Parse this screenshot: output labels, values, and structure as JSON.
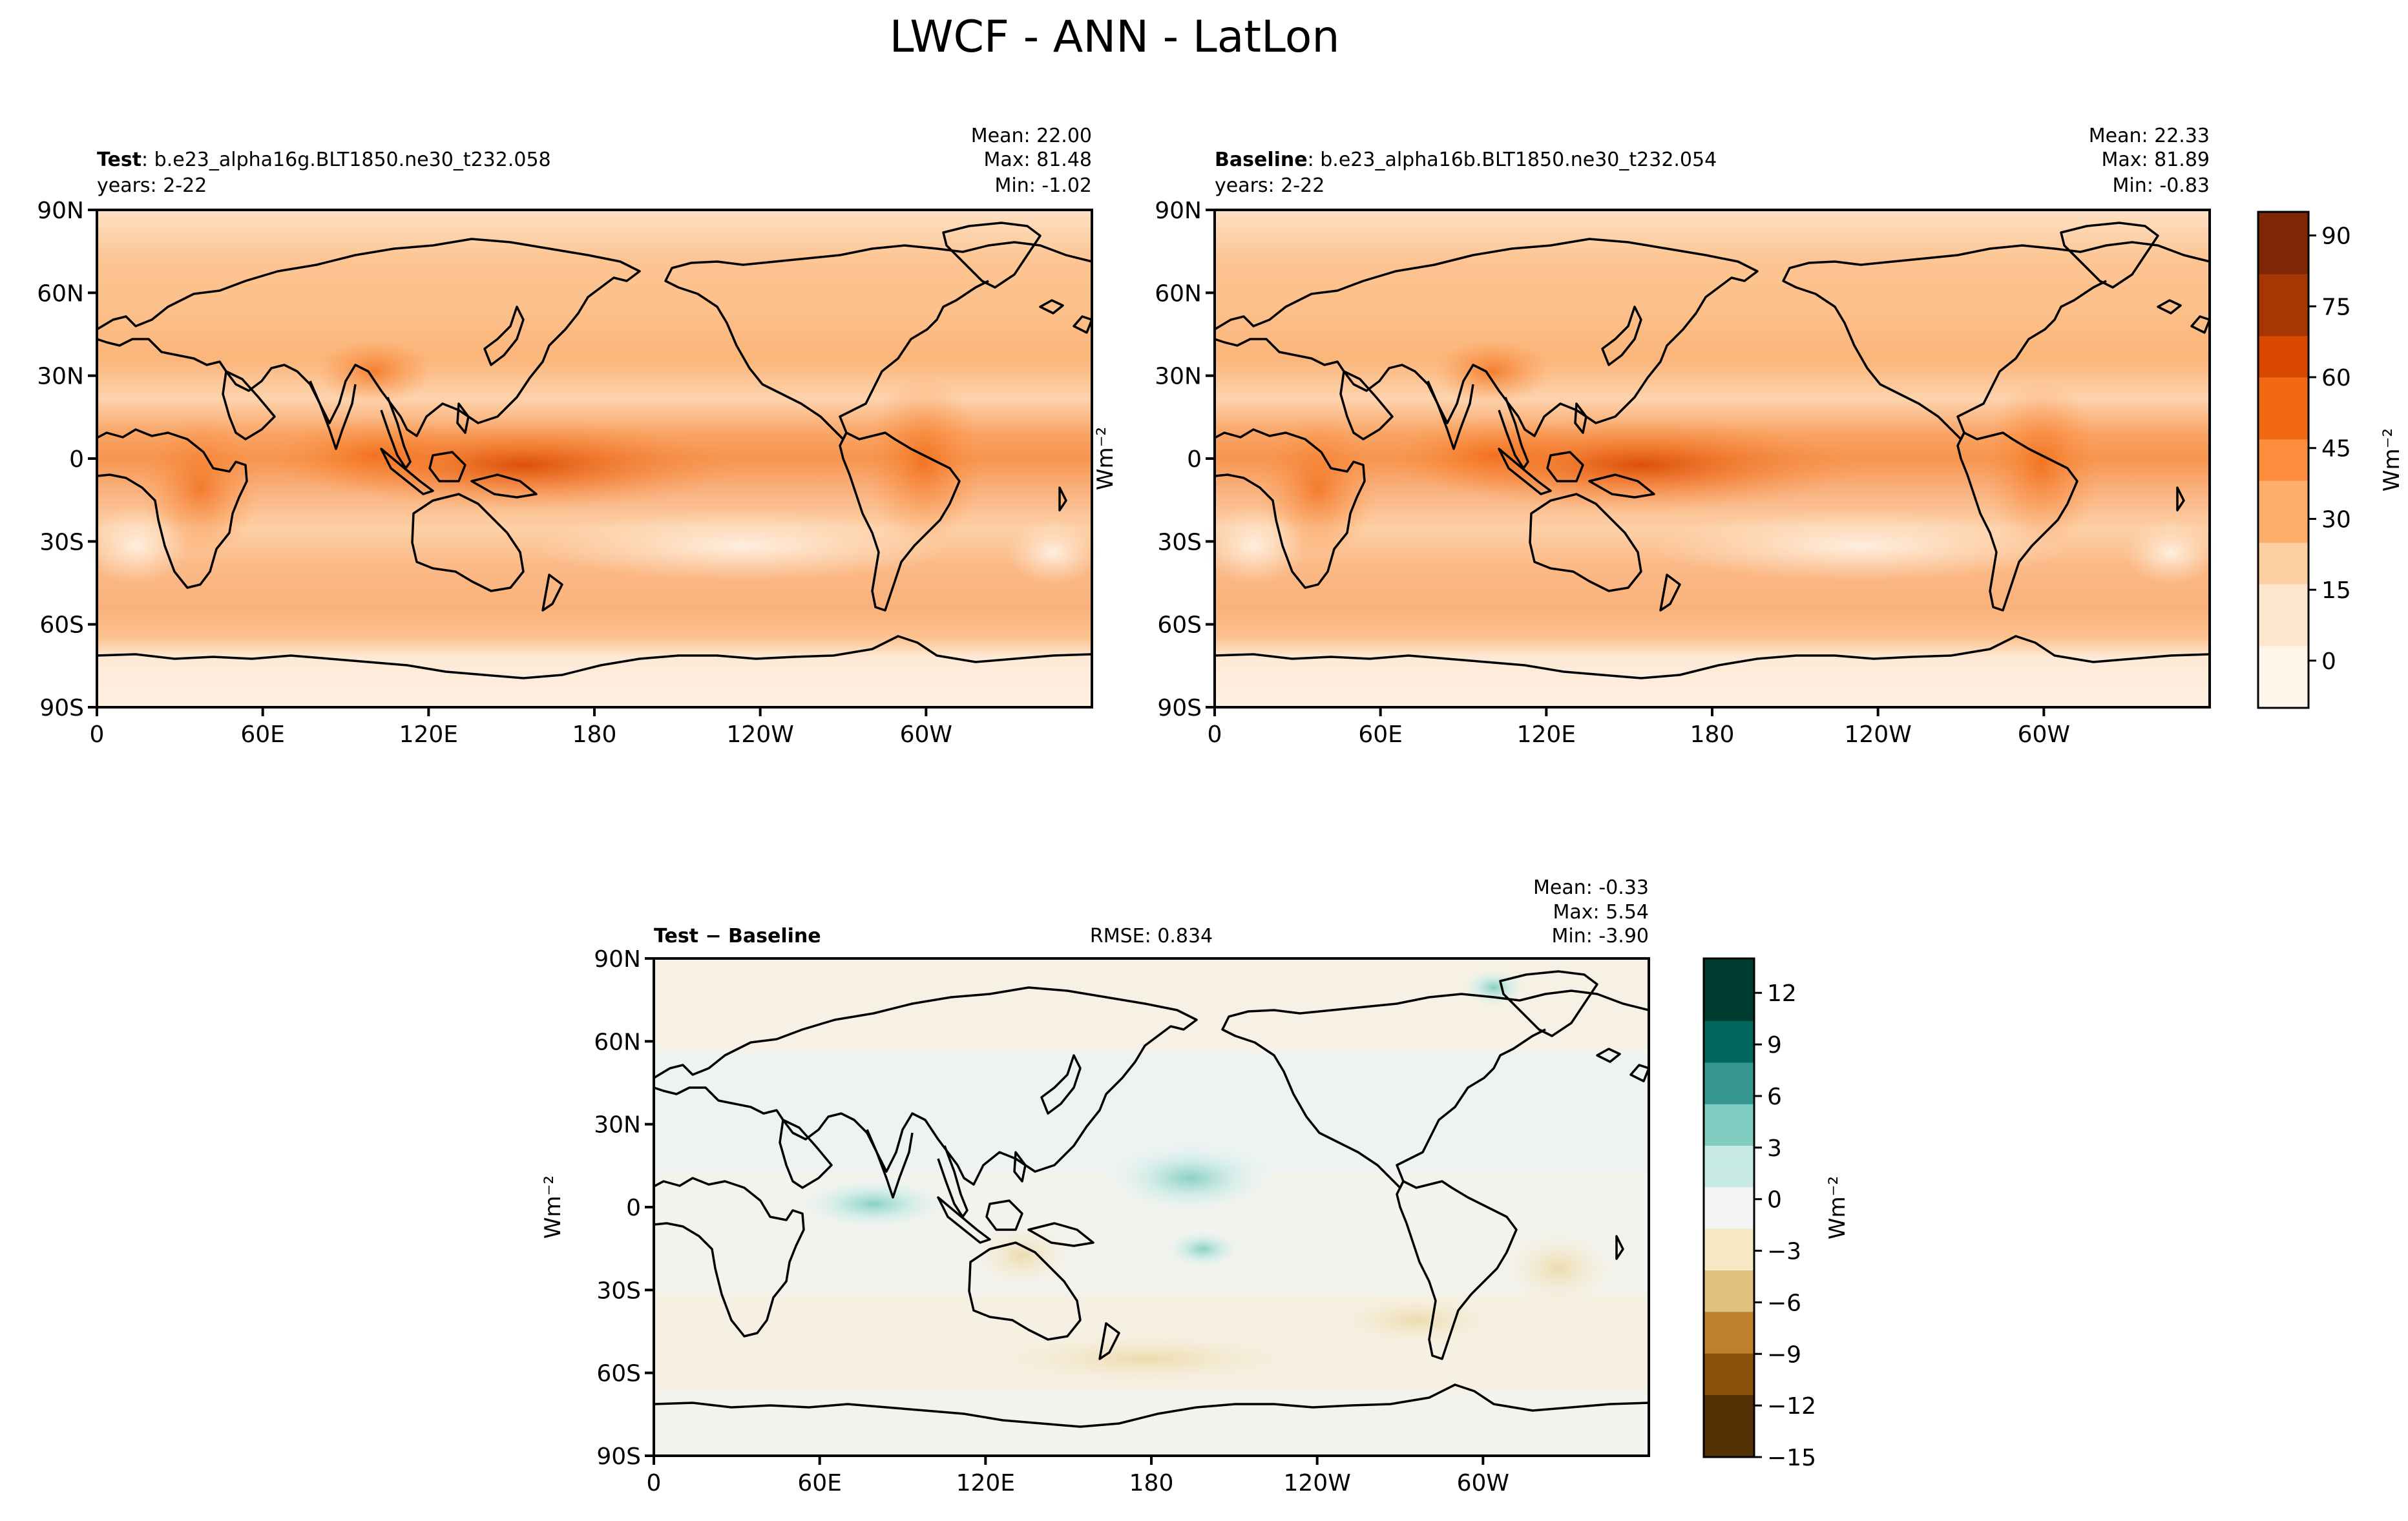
{
  "figure": {
    "title": "LWCF - ANN - LatLon"
  },
  "axes": {
    "lat_ticks": [
      "90N",
      "60N",
      "30N",
      "0",
      "30S",
      "60S",
      "90S"
    ],
    "lon_ticks": [
      "0",
      "60E",
      "120E",
      "180",
      "120W",
      "60W"
    ]
  },
  "panels": {
    "test": {
      "label_bold": "Test",
      "label_rest": ": b.e23_alpha16g.BLT1850.ne30_t232.058",
      "years": "years: 2-22",
      "mean": "Mean: 22.00",
      "max": "Max: 81.48",
      "min": "Min: -1.02"
    },
    "baseline": {
      "label_bold": "Baseline",
      "label_rest": ": b.e23_alpha16b.BLT1850.ne30_t232.054",
      "years": "years: 2-22",
      "mean": "Mean: 22.33",
      "max": "Max: 81.89",
      "min": "Min: -0.83"
    },
    "diff": {
      "label_bold": "Test − Baseline",
      "rmse": "RMSE: 0.834",
      "mean": "Mean: -0.33",
      "max": "Max:  5.54",
      "min": "Min: -3.90",
      "ylabel": "Wm⁻²"
    }
  },
  "colorbars": {
    "main": {
      "label": "Wm⁻²",
      "ticks": [
        "90",
        "75",
        "60",
        "45",
        "30",
        "15",
        "0"
      ],
      "range": [
        -10,
        95
      ],
      "colors": [
        "#fff5eb",
        "#fee6ce",
        "#fdd0a2",
        "#fdae6b",
        "#fd8d3c",
        "#f16913",
        "#d94801",
        "#a63603",
        "#7f2704"
      ]
    },
    "diff": {
      "label": "Wm⁻²",
      "ticks": [
        "12",
        "9",
        "6",
        "3",
        "0",
        "−3",
        "−6",
        "−9",
        "−12",
        "−15"
      ],
      "range": [
        -15,
        14
      ],
      "colors": [
        "#543005",
        "#8c510a",
        "#bf812d",
        "#dfc27d",
        "#f6e8c3",
        "#f5f5f5",
        "#c7eae5",
        "#80cdc1",
        "#35978f",
        "#01665e",
        "#003c30"
      ]
    }
  },
  "chart_data": [
    {
      "type": "heatmap",
      "title": "Test",
      "x_ticks": [
        "0",
        "60E",
        "120E",
        "180",
        "120W",
        "60W"
      ],
      "y_ticks": [
        "90N",
        "60N",
        "30N",
        "0",
        "30S",
        "60S",
        "90S"
      ],
      "stats": {
        "mean": 22.0,
        "max": 81.48,
        "min": -1.02
      },
      "units": "Wm-2",
      "zonal_band_values": [
        {
          "lat": 75,
          "value": 18
        },
        {
          "lat": 55,
          "value": 30
        },
        {
          "lat": 40,
          "value": 27
        },
        {
          "lat": 20,
          "value": 18
        },
        {
          "lat": 5,
          "value": 40
        },
        {
          "lat": -10,
          "value": 28
        },
        {
          "lat": -25,
          "value": 15
        },
        {
          "lat": -45,
          "value": 28
        },
        {
          "lat": -60,
          "value": 28
        },
        {
          "lat": -80,
          "value": 8
        }
      ]
    },
    {
      "type": "heatmap",
      "title": "Baseline",
      "x_ticks": [
        "0",
        "60E",
        "120E",
        "180",
        "120W",
        "60W"
      ],
      "y_ticks": [
        "90N",
        "60N",
        "30N",
        "0",
        "30S",
        "60S",
        "90S"
      ],
      "stats": {
        "mean": 22.33,
        "max": 81.89,
        "min": -0.83
      },
      "units": "Wm-2"
    },
    {
      "type": "heatmap",
      "title": "Test − Baseline",
      "x_ticks": [
        "0",
        "60E",
        "120E",
        "180",
        "120W",
        "60W"
      ],
      "y_ticks": [
        "90N",
        "60N",
        "30N",
        "0",
        "30S",
        "60S",
        "90S"
      ],
      "stats": {
        "mean": -0.33,
        "max": 5.54,
        "min": -3.9,
        "rmse": 0.834
      },
      "units": "Wm-2"
    }
  ]
}
